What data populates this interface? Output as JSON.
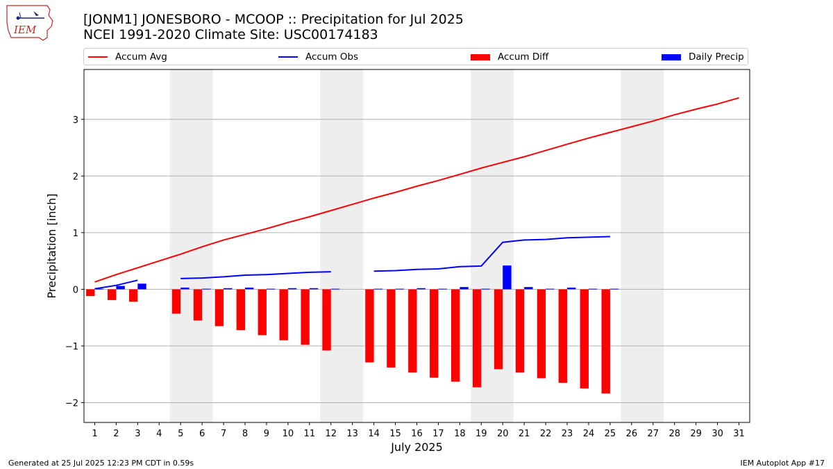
{
  "header": {
    "title_line1": "[JONM1] JONESBORO - MCOOP :: Precipitation for Jul 2025",
    "title_line2": "NCEI 1991-2020 Climate Site: USC00174183",
    "logo_text": "IEM"
  },
  "footer": {
    "generated": "Generated at 25 Jul 2025 12:23 PM CDT in 0.59s",
    "app": "IEM Autoplot App #17"
  },
  "colors": {
    "accum_avg": "#ff0000",
    "accum_obs": "#0000ff",
    "accum_diff": "#ff0000",
    "daily_precip": "#0000ff",
    "weekend_shade": "#eeeeee",
    "grid": "#b0b0b0"
  },
  "chart_data": {
    "type": "bar",
    "xlabel": "July 2025",
    "ylabel": "Precipitation [inch]",
    "ylim": [
      -2.35,
      3.88
    ],
    "yticks": [
      -2,
      -1,
      0,
      1,
      2,
      3
    ],
    "ytick_labels": [
      "−2",
      "−1",
      "0",
      "1",
      "2",
      "3"
    ],
    "x": [
      1,
      2,
      3,
      4,
      5,
      6,
      7,
      8,
      9,
      10,
      11,
      12,
      13,
      14,
      15,
      16,
      17,
      18,
      19,
      20,
      21,
      22,
      23,
      24,
      25,
      26,
      27,
      28,
      29,
      30,
      31
    ],
    "xlim": [
      0.5,
      31.5
    ],
    "grid": "horizontal",
    "legend_placement": "top",
    "weekend_shading": [
      [
        5,
        6
      ],
      [
        12,
        13
      ],
      [
        19,
        20
      ],
      [
        26,
        27
      ]
    ],
    "series": [
      {
        "name": "Accum Avg",
        "kind": "line",
        "values": [
          0.13,
          0.26,
          0.38,
          0.5,
          0.62,
          0.75,
          0.87,
          0.97,
          1.07,
          1.18,
          1.28,
          1.39,
          1.5,
          1.61,
          1.71,
          1.82,
          1.92,
          2.03,
          2.14,
          2.24,
          2.34,
          2.45,
          2.56,
          2.67,
          2.77,
          2.87,
          2.97,
          3.08,
          3.18,
          3.27,
          3.38
        ]
      },
      {
        "name": "Accum Obs",
        "kind": "line",
        "values": [
          0.01,
          0.07,
          0.16,
          null,
          0.19,
          0.2,
          0.22,
          0.25,
          0.26,
          0.28,
          0.3,
          0.31,
          null,
          0.32,
          0.33,
          0.35,
          0.36,
          0.4,
          0.41,
          0.83,
          0.87,
          0.88,
          0.91,
          0.92,
          0.93,
          null,
          null,
          null,
          null,
          null,
          null
        ]
      },
      {
        "name": "Accum Diff",
        "kind": "bar",
        "values": [
          -0.12,
          -0.19,
          -0.22,
          null,
          -0.43,
          -0.55,
          -0.65,
          -0.72,
          -0.81,
          -0.9,
          -0.98,
          -1.08,
          null,
          -1.29,
          -1.38,
          -1.47,
          -1.56,
          -1.63,
          -1.73,
          -1.41,
          -1.47,
          -1.57,
          -1.65,
          -1.75,
          -1.84,
          null,
          null,
          null,
          null,
          null,
          null
        ]
      },
      {
        "name": "Daily Precip",
        "kind": "bar",
        "values": [
          0.01,
          0.06,
          0.1,
          null,
          0.03,
          0.01,
          0.02,
          0.03,
          0.01,
          0.02,
          0.02,
          0.01,
          null,
          0.01,
          0.01,
          0.02,
          0.01,
          0.04,
          0.01,
          0.42,
          0.04,
          0.01,
          0.03,
          0.01,
          0.01,
          null,
          null,
          null,
          null,
          null,
          null
        ]
      }
    ]
  }
}
